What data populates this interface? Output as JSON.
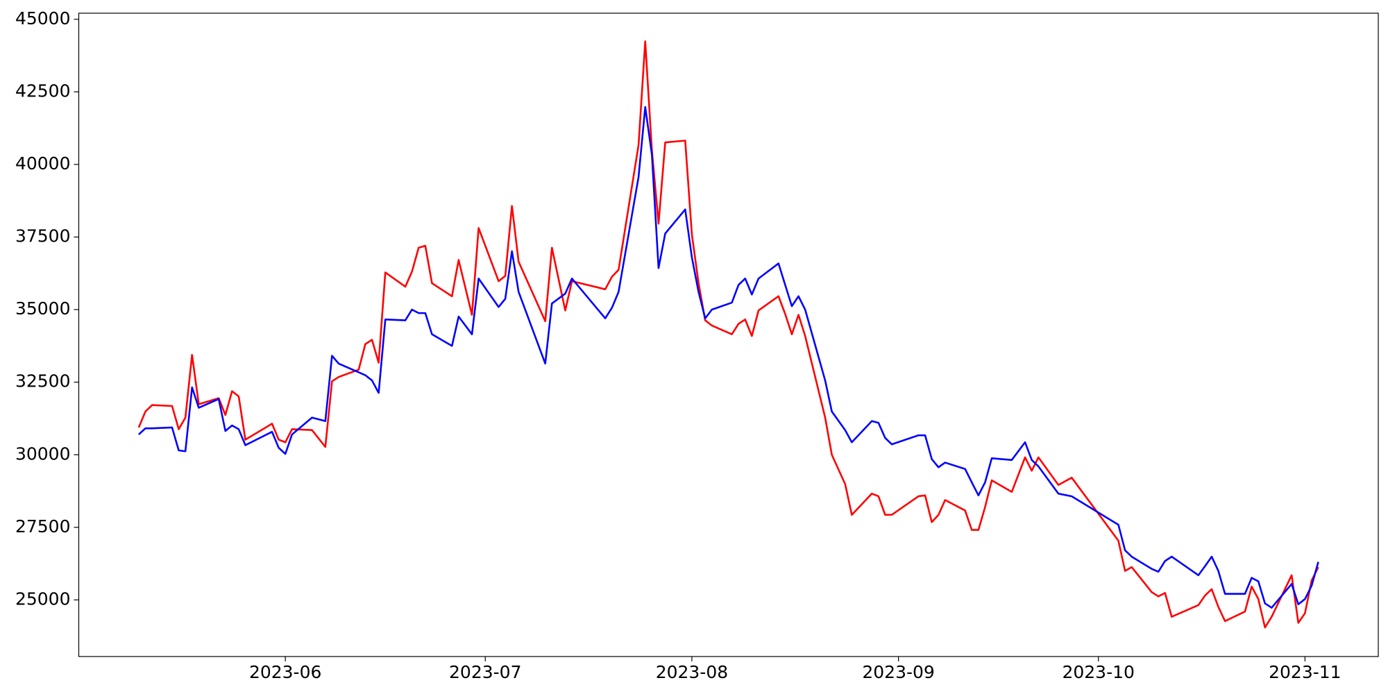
{
  "chart_data": {
    "type": "line",
    "x": [
      "2023-05-10",
      "2023-05-11",
      "2023-05-12",
      "2023-05-15",
      "2023-05-16",
      "2023-05-17",
      "2023-05-18",
      "2023-05-19",
      "2023-05-22",
      "2023-05-23",
      "2023-05-24",
      "2023-05-25",
      "2023-05-26",
      "2023-05-30",
      "2023-05-31",
      "2023-06-01",
      "2023-06-02",
      "2023-06-05",
      "2023-06-07",
      "2023-06-08",
      "2023-06-09",
      "2023-06-12",
      "2023-06-13",
      "2023-06-14",
      "2023-06-15",
      "2023-06-16",
      "2023-06-19",
      "2023-06-20",
      "2023-06-21",
      "2023-06-22",
      "2023-06-23",
      "2023-06-26",
      "2023-06-27",
      "2023-06-29",
      "2023-06-30",
      "2023-07-03",
      "2023-07-04",
      "2023-07-05",
      "2023-07-06",
      "2023-07-10",
      "2023-07-11",
      "2023-07-13",
      "2023-07-14",
      "2023-07-19",
      "2023-07-20",
      "2023-07-21",
      "2023-07-24",
      "2023-07-25",
      "2023-07-26",
      "2023-07-27",
      "2023-07-28",
      "2023-07-31",
      "2023-08-01",
      "2023-08-02",
      "2023-08-03",
      "2023-08-04",
      "2023-08-07",
      "2023-08-08",
      "2023-08-09",
      "2023-08-10",
      "2023-08-11",
      "2023-08-14",
      "2023-08-15",
      "2023-08-16",
      "2023-08-17",
      "2023-08-18",
      "2023-08-21",
      "2023-08-22",
      "2023-08-24",
      "2023-08-25",
      "2023-08-28",
      "2023-08-29",
      "2023-08-30",
      "2023-08-31",
      "2023-09-04",
      "2023-09-05",
      "2023-09-06",
      "2023-09-07",
      "2023-09-08",
      "2023-09-11",
      "2023-09-12",
      "2023-09-13",
      "2023-09-14",
      "2023-09-15",
      "2023-09-18",
      "2023-09-20",
      "2023-09-21",
      "2023-09-22",
      "2023-09-25",
      "2023-09-27",
      "2023-10-04",
      "2023-10-05",
      "2023-10-06",
      "2023-10-09",
      "2023-10-10",
      "2023-10-11",
      "2023-10-12",
      "2023-10-16",
      "2023-10-17",
      "2023-10-18",
      "2023-10-19",
      "2023-10-20",
      "2023-10-23",
      "2023-10-24",
      "2023-10-25",
      "2023-10-26",
      "2023-10-27",
      "2023-10-30",
      "2023-10-31",
      "2023-11-01",
      "2023-11-02",
      "2023-11-03"
    ],
    "series": [
      {
        "color": "#ff0000",
        "values": [
          30940,
          31490,
          31710,
          31680,
          30880,
          31280,
          33440,
          31740,
          31950,
          31370,
          32190,
          32010,
          30520,
          31070,
          30520,
          30430,
          30880,
          30850,
          30270,
          32530,
          32680,
          32930,
          33810,
          33960,
          33170,
          36280,
          35790,
          36310,
          37130,
          37200,
          35910,
          35460,
          36710,
          34820,
          37810,
          35980,
          36160,
          38570,
          36650,
          34600,
          37130,
          34970,
          35980,
          35700,
          36130,
          36370,
          40670,
          44240,
          40490,
          37960,
          40760,
          40820,
          37590,
          35910,
          34630,
          34450,
          34150,
          34510,
          34660,
          34090,
          34970,
          35460,
          34850,
          34150,
          34820,
          34090,
          31280,
          30000,
          28990,
          27930,
          28660,
          28570,
          27930,
          27930,
          28570,
          28600,
          27680,
          27930,
          28440,
          28080,
          27410,
          27410,
          28200,
          29120,
          28720,
          29910,
          29450,
          29910,
          28960,
          29210,
          27040,
          26000,
          26130,
          25270,
          25120,
          25240,
          24420,
          24820,
          25150,
          25370,
          24760,
          24270,
          24600,
          25460,
          25030,
          24050,
          24420,
          25850,
          24210,
          24540,
          25670,
          26130
        ]
      },
      {
        "color": "#0000ff",
        "values": [
          30700,
          30910,
          30910,
          30940,
          30150,
          30120,
          32320,
          31620,
          31920,
          30820,
          31010,
          30880,
          30330,
          30790,
          30240,
          30030,
          30700,
          31280,
          31160,
          33410,
          33140,
          32840,
          32740,
          32560,
          32130,
          34660,
          34630,
          35000,
          34880,
          34880,
          34150,
          33750,
          34760,
          34150,
          36070,
          35090,
          35370,
          37010,
          35610,
          33140,
          35210,
          35550,
          36070,
          34700,
          35060,
          35610,
          39570,
          41980,
          40340,
          36430,
          37620,
          38450,
          36800,
          35610,
          34700,
          35000,
          35240,
          35850,
          36070,
          35520,
          36070,
          36590,
          35850,
          35120,
          35460,
          35000,
          32560,
          31490,
          30850,
          30430,
          31160,
          31100,
          30580,
          30360,
          30670,
          30670,
          29850,
          29570,
          29730,
          29510,
          29050,
          28600,
          29050,
          29880,
          29820,
          30430,
          29820,
          29600,
          28660,
          28570,
          27590,
          26710,
          26490,
          26070,
          25970,
          26340,
          26490,
          25850,
          26160,
          26490,
          26000,
          25210,
          25210,
          25760,
          25640,
          24880,
          24730,
          25550,
          24850,
          25030,
          25490,
          26310
        ]
      }
    ],
    "xlim": [
      "2023-05-01",
      "2023-11-12"
    ],
    "xticks": [
      {
        "value": "2023-06-01",
        "label": "2023-06"
      },
      {
        "value": "2023-07-01",
        "label": "2023-07"
      },
      {
        "value": "2023-08-01",
        "label": "2023-08"
      },
      {
        "value": "2023-09-01",
        "label": "2023-09"
      },
      {
        "value": "2023-10-01",
        "label": "2023-10"
      },
      {
        "value": "2023-11-01",
        "label": "2023-11"
      }
    ],
    "ylim": [
      23050,
      45210
    ],
    "yticks": [
      25000,
      27500,
      30000,
      32500,
      35000,
      37500,
      40000,
      42500,
      45000
    ],
    "grid": false
  }
}
